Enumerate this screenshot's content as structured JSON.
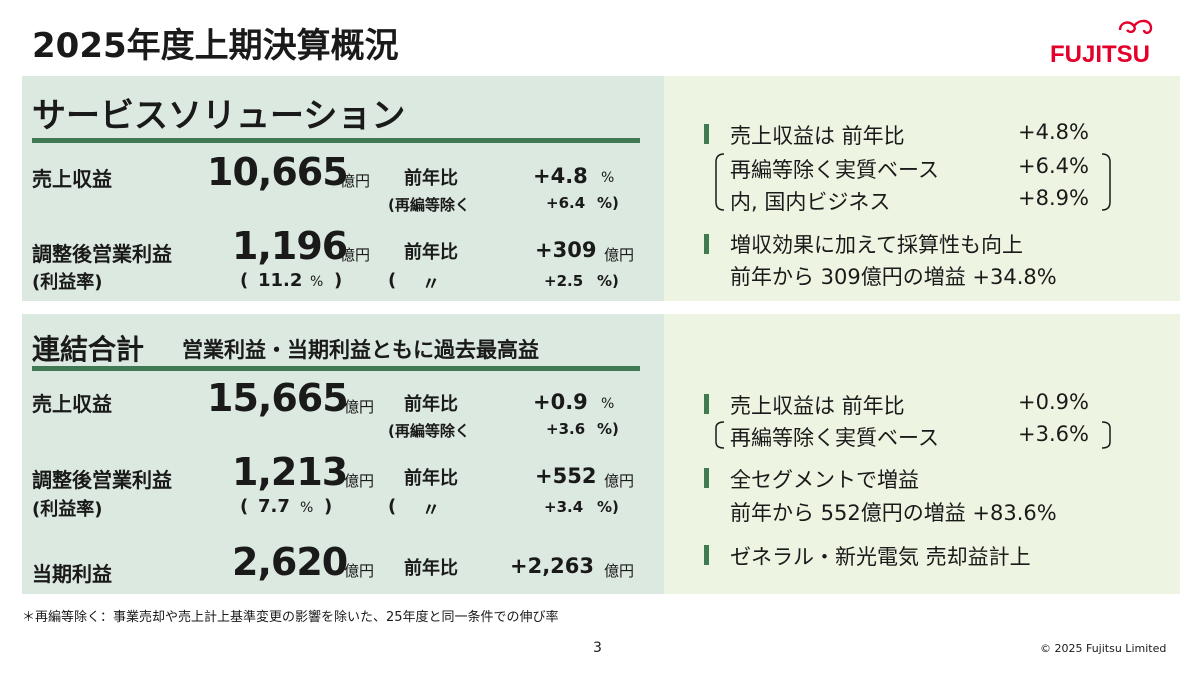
{
  "page_title": "2025年度上期決算概況",
  "logo_text": "FUJITSU",
  "service": {
    "title": "サービスソリューション",
    "revenue": {
      "label": "売上収益",
      "value": "10,665",
      "unit": "億円",
      "yoy_label": "前年比",
      "yoy_value": "+4.8",
      "yoy_pct": "%",
      "sub_label": "(再編等除く",
      "sub_value": "+6.4",
      "sub_close": "%)"
    },
    "profit": {
      "label": "調整後営業利益",
      "sublabel": "(利益率)",
      "value": "1,196",
      "unit": "億円",
      "yoy_label": "前年比",
      "yoy_value": "+309",
      "yoy_unit": "億円",
      "margin_open": "(",
      "margin_value": "11.2",
      "margin_pct": "%",
      "margin_close": ")",
      "ditto_open": "(",
      "ditto": "〃",
      "sub_value": "+2.5",
      "sub_close": "%)"
    }
  },
  "service_notes": [
    {
      "text": "売上収益は 前年比",
      "value": "+4.8%"
    },
    {
      "text": "再編等除く実質ベース",
      "value": "+6.4%"
    },
    {
      "text": "内, 国内ビジネス",
      "value": "+8.9%"
    },
    {
      "text": "増収効果に加えて採算性も向上"
    },
    {
      "text": "前年から 309億円の増益 +34.8%"
    }
  ],
  "consolidated": {
    "title": "連結合計",
    "subtitle": "営業利益・当期利益ともに過去最高益",
    "revenue": {
      "label": "売上収益",
      "value": "15,665",
      "unit": "億円",
      "yoy_label": "前年比",
      "yoy_value": "+0.9",
      "yoy_pct": "%",
      "sub_label": "(再編等除く",
      "sub_value": "+3.6",
      "sub_close": "%)"
    },
    "profit": {
      "label": "調整後営業利益",
      "sublabel": "(利益率)",
      "value": "1,213",
      "unit": "億円",
      "yoy_label": "前年比",
      "yoy_value": "+552",
      "yoy_unit": "億円",
      "margin_open": "(",
      "margin_value": "7.7",
      "margin_pct": "%",
      "margin_close": ")",
      "ditto_open": "(",
      "ditto": "〃",
      "sub_value": "+3.4",
      "sub_close": "%)"
    },
    "net": {
      "label": "当期利益",
      "value": "2,620",
      "unit": "億円",
      "yoy_label": "前年比",
      "yoy_value": "+2,263",
      "yoy_unit": "億円"
    }
  },
  "consolidated_notes": [
    {
      "text": "売上収益は 前年比",
      "value": "+0.9%"
    },
    {
      "text": "再編等除く実質ベース",
      "value": "+3.6%"
    },
    {
      "text": "全セグメントで増益"
    },
    {
      "text": "前年から 552億円の増益 +83.6%"
    },
    {
      "text": "ゼネラル・新光電気 売却益計上"
    }
  ],
  "footnote": "＊再編等除く：事業売却や売上計上基準変更の影響を除いた、25年度と同一条件での伸び率",
  "page_number": "3",
  "copyright": "© 2025 Fujitsu Limited",
  "colors": {
    "accent_green": "#3f7a52",
    "brand_red": "#e4002b",
    "left_panel": "#dce9e0",
    "right_panel": "#eef4e2"
  }
}
